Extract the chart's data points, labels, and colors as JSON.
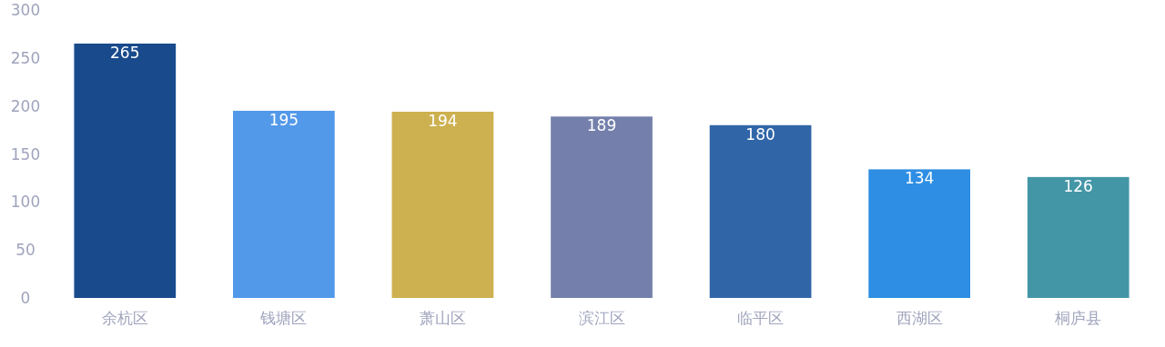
{
  "chart_data": {
    "type": "bar",
    "categories": [
      "余杭区",
      "钱塘区",
      "萧山区",
      "滨江区",
      "临平区",
      "西湖区",
      "桐庐县"
    ],
    "values": [
      265,
      195,
      194,
      189,
      180,
      134,
      126
    ],
    "colors": [
      "#184a8c",
      "#5399ea",
      "#cdb050",
      "#7480ab",
      "#3066a8",
      "#2d8ee3",
      "#4396a6"
    ],
    "ylim": [
      0,
      300
    ],
    "yticks": [
      0,
      50,
      100,
      150,
      200,
      250,
      300
    ],
    "data_labels": true,
    "grid": false
  }
}
